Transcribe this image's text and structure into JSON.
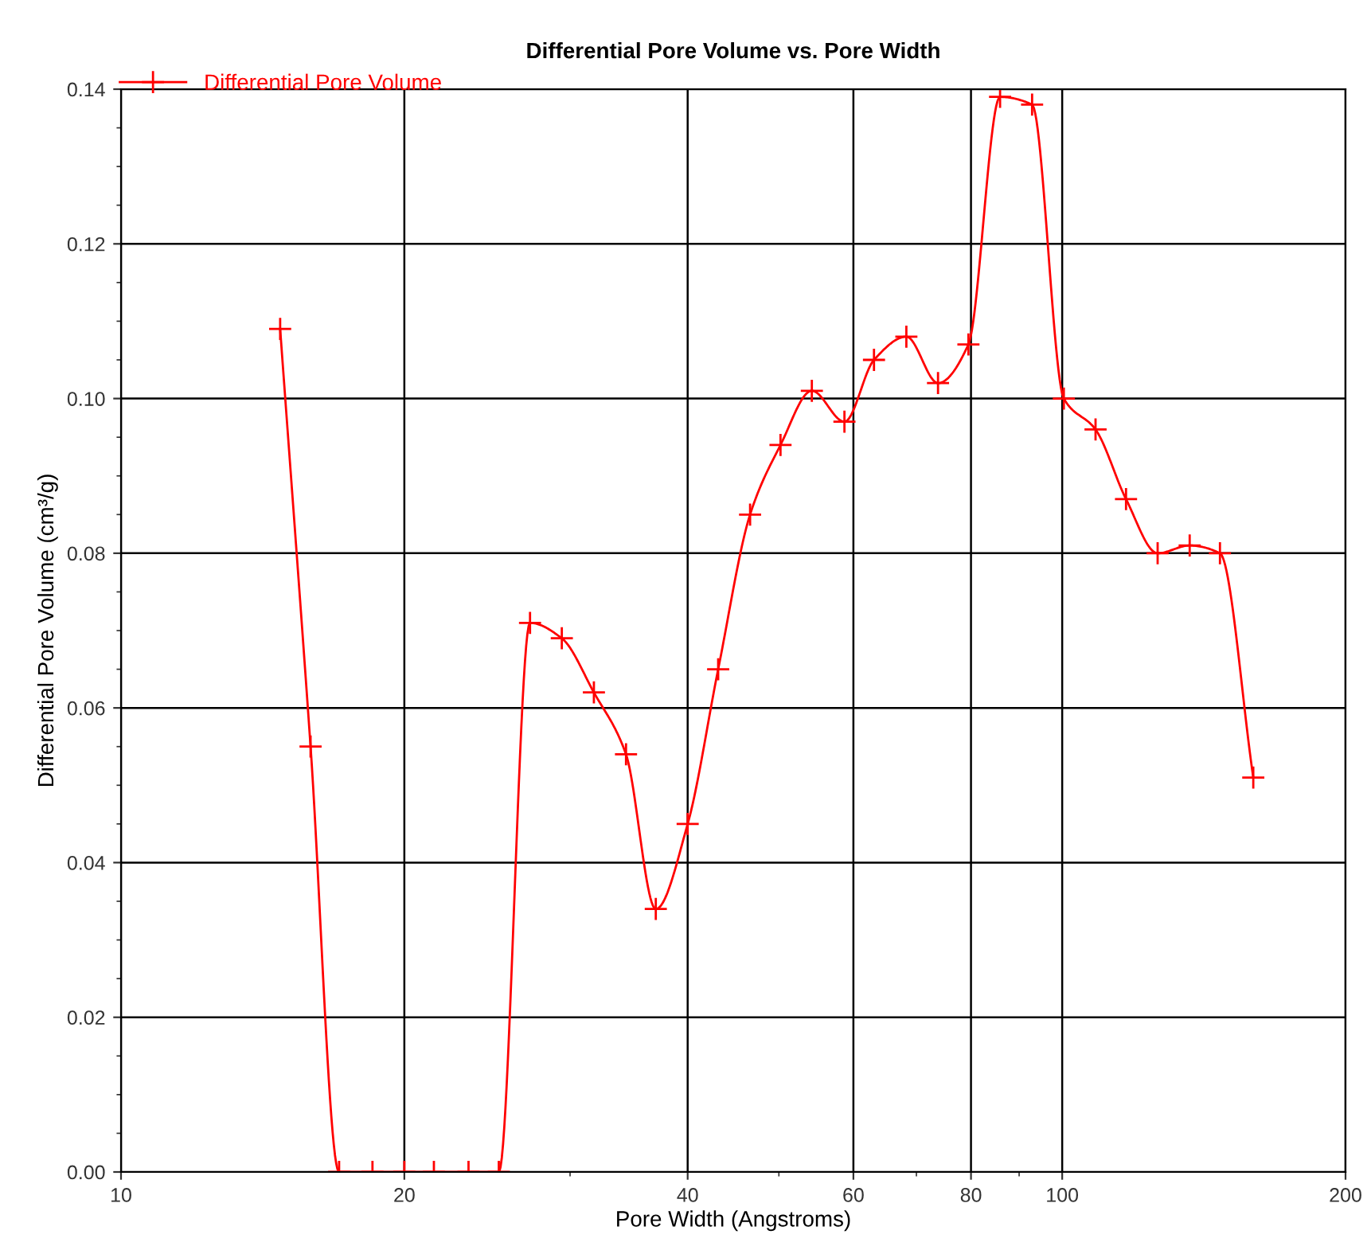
{
  "chart_data": {
    "type": "line",
    "title": "Differential Pore Volume vs. Pore Width",
    "xlabel": "Pore Width (Angstroms)",
    "ylabel": "Differential Pore Volume (cm³/g)",
    "log": "x",
    "xlim": [
      10,
      200
    ],
    "xticks": [
      10,
      20,
      40,
      60,
      80,
      100,
      200
    ],
    "ylim": [
      0,
      0.14
    ],
    "yticks": [
      {
        "value": 0,
        "label": "0.00"
      },
      {
        "value": 0.02,
        "label": "0.02"
      },
      {
        "value": 0.04,
        "label": "0.04"
      },
      {
        "value": 0.06,
        "label": "0.06"
      },
      {
        "value": 0.08,
        "label": "0.08"
      },
      {
        "value": 0.1,
        "label": "0.10"
      },
      {
        "value": 0.12,
        "label": "0.12"
      },
      {
        "value": 0.14,
        "label": "0.14"
      }
    ],
    "grid": true,
    "legend": "top left",
    "marker": "cross",
    "line_style": "solid",
    "x": [
      14.76,
      15.9,
      17.05,
      18.5,
      20,
      21.5,
      23.4,
      25.2,
      27.2,
      29.4,
      31.8,
      34.4,
      37.0,
      40,
      43.1,
      46.6,
      50.2,
      54.2,
      58.7,
      63.1,
      68.3,
      73.8,
      79.5,
      85.9,
      92.9,
      100.4,
      108.5,
      116.9,
      126.3,
      136.6,
      147.1,
      159.6
    ],
    "series": [
      {
        "name": "Differential Pore Volume",
        "color": "#ff0000",
        "values": [
          0.109,
          0.055,
          0,
          0,
          0,
          0,
          0,
          0,
          0.071,
          0.069,
          0.062,
          0.054,
          0.034,
          0.045,
          0.065,
          0.085,
          0.094,
          0.101,
          0.097,
          0.105,
          0.108,
          0.102,
          0.107,
          0.139,
          0.138,
          0.1,
          0.096,
          0.087,
          0.08,
          0.081,
          0.08,
          0.051
        ]
      }
    ]
  }
}
